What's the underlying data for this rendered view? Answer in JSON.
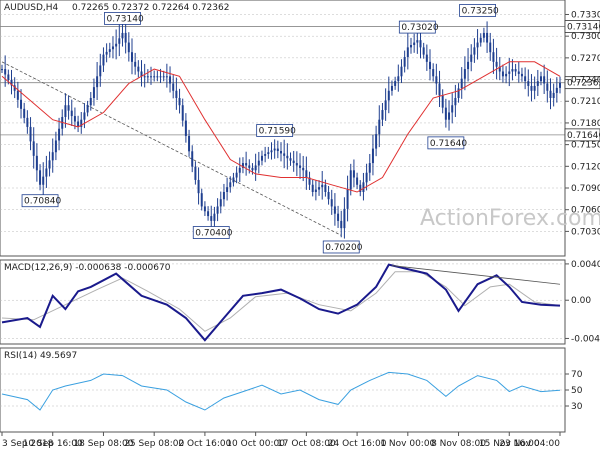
{
  "window": {
    "symbol_header": "AUDUSD,H4",
    "ohlc_header": "0.72265 0.72372 0.72264 0.72362",
    "watermark": "ActionForex.com"
  },
  "colors": {
    "candle": "#1f3f8f",
    "ma": "#e03030",
    "macd": "#1a1a8c",
    "signal": "#b0b0b0",
    "rsi": "#3aa0e0",
    "trendline": "#555555",
    "grid": "#bbbbbb"
  },
  "chart_data": [
    {
      "type": "line",
      "name": "price",
      "ylim": [
        0.7002,
        0.7345
      ],
      "yticks": [
        "0.73305",
        "0.73005",
        "0.72705",
        "0.72405",
        "0.72105",
        "0.71805",
        "0.71505",
        "0.71205",
        "0.70905",
        "0.70605",
        "0.70305"
      ],
      "ytick_values": [
        0.73305,
        0.73005,
        0.72705,
        0.72405,
        0.72105,
        0.71805,
        0.71505,
        0.71205,
        0.70905,
        0.70605,
        0.70305
      ],
      "levels": [
        {
          "label": "0.73140",
          "value": 0.7314
        },
        {
          "label": "0.72362",
          "value": 0.72362
        },
        {
          "label": "0.71640",
          "value": 0.7164
        }
      ],
      "annotations": [
        {
          "label": "0.73140",
          "x": 38,
          "value": 0.7314,
          "anchor": "low"
        },
        {
          "label": "0.70840",
          "x": 12,
          "value": 0.7084,
          "anchor": "high"
        },
        {
          "label": "0.70400",
          "x": 66,
          "value": 0.704,
          "anchor": "high"
        },
        {
          "label": "0.71590",
          "x": 86,
          "value": 0.7159,
          "anchor": "low"
        },
        {
          "label": "0.70200",
          "x": 107,
          "value": 0.702,
          "anchor": "high"
        },
        {
          "label": "0.73020",
          "x": 131,
          "value": 0.7302,
          "anchor": "low"
        },
        {
          "label": "0.71640",
          "x": 140,
          "value": 0.7164,
          "anchor": "high"
        },
        {
          "label": "0.73250",
          "x": 150,
          "value": 0.7325,
          "anchor": "low"
        }
      ],
      "price_path": [
        [
          0,
          0.7255
        ],
        [
          4,
          0.7225
        ],
        [
          8,
          0.7175
        ],
        [
          12,
          0.7095
        ],
        [
          16,
          0.714
        ],
        [
          20,
          0.7205
        ],
        [
          24,
          0.7175
        ],
        [
          28,
          0.7215
        ],
        [
          32,
          0.7275
        ],
        [
          36,
          0.729
        ],
        [
          38,
          0.7305
        ],
        [
          41,
          0.7265
        ],
        [
          44,
          0.7245
        ],
        [
          48,
          0.7245
        ],
        [
          52,
          0.7245
        ],
        [
          56,
          0.7205
        ],
        [
          60,
          0.712
        ],
        [
          63,
          0.7065
        ],
        [
          66,
          0.7045
        ],
        [
          70,
          0.7085
        ],
        [
          73,
          0.7105
        ],
        [
          76,
          0.7125
        ],
        [
          79,
          0.7115
        ],
        [
          82,
          0.7135
        ],
        [
          86,
          0.7145
        ],
        [
          89,
          0.7135
        ],
        [
          92,
          0.7125
        ],
        [
          95,
          0.7115
        ],
        [
          98,
          0.7085
        ],
        [
          101,
          0.7095
        ],
        [
          104,
          0.7065
        ],
        [
          107,
          0.7035
        ],
        [
          110,
          0.7115
        ],
        [
          113,
          0.7085
        ],
        [
          116,
          0.7125
        ],
        [
          119,
          0.7185
        ],
        [
          122,
          0.7225
        ],
        [
          125,
          0.7245
        ],
        [
          128,
          0.7285
        ],
        [
          131,
          0.7295
        ],
        [
          134,
          0.7265
        ],
        [
          137,
          0.7235
        ],
        [
          140,
          0.7185
        ],
        [
          143,
          0.7215
        ],
        [
          146,
          0.7255
        ],
        [
          149,
          0.7285
        ],
        [
          152,
          0.7305
        ],
        [
          155,
          0.7265
        ],
        [
          158,
          0.7245
        ],
        [
          161,
          0.7255
        ],
        [
          164,
          0.7245
        ],
        [
          167,
          0.7225
        ],
        [
          170,
          0.7245
        ],
        [
          173,
          0.7215
        ],
        [
          176,
          0.7236
        ]
      ],
      "ma_path": [
        [
          0,
          0.7245
        ],
        [
          8,
          0.7215
        ],
        [
          16,
          0.7185
        ],
        [
          24,
          0.7175
        ],
        [
          32,
          0.7195
        ],
        [
          40,
          0.7235
        ],
        [
          48,
          0.7255
        ],
        [
          56,
          0.7245
        ],
        [
          64,
          0.7185
        ],
        [
          72,
          0.713
        ],
        [
          80,
          0.711
        ],
        [
          88,
          0.7105
        ],
        [
          96,
          0.7105
        ],
        [
          104,
          0.7095
        ],
        [
          112,
          0.7085
        ],
        [
          120,
          0.7105
        ],
        [
          128,
          0.7165
        ],
        [
          136,
          0.7215
        ],
        [
          144,
          0.7225
        ],
        [
          152,
          0.7245
        ],
        [
          160,
          0.7265
        ],
        [
          168,
          0.7265
        ],
        [
          176,
          0.7245
        ]
      ],
      "trendline": [
        [
          0,
          0.7265
        ],
        [
          107,
          0.7025
        ]
      ]
    },
    {
      "type": "line",
      "name": "MACD(12,26,9) -0.000638 -0.000670",
      "ylim": [
        -0.0047,
        0.0043
      ],
      "yticks": [
        "0.004085",
        "0.00",
        "-0.0043"
      ],
      "ytick_values": [
        0.004085,
        0.0,
        -0.0043
      ],
      "zero_line": 0.0,
      "macd_path": [
        [
          0,
          -0.0025
        ],
        [
          8,
          -0.002
        ],
        [
          12,
          -0.003
        ],
        [
          16,
          0.0005
        ],
        [
          20,
          -0.001
        ],
        [
          24,
          0.001
        ],
        [
          28,
          0.0015
        ],
        [
          36,
          0.003
        ],
        [
          44,
          0.0005
        ],
        [
          52,
          -0.0005
        ],
        [
          58,
          -0.002
        ],
        [
          64,
          -0.0045
        ],
        [
          70,
          -0.002
        ],
        [
          76,
          0.0005
        ],
        [
          82,
          0.0008
        ],
        [
          88,
          0.0012
        ],
        [
          94,
          0.0002
        ],
        [
          100,
          -0.001
        ],
        [
          106,
          -0.0015
        ],
        [
          112,
          -0.0005
        ],
        [
          118,
          0.0015
        ],
        [
          122,
          0.004
        ],
        [
          128,
          0.0035
        ],
        [
          134,
          0.003
        ],
        [
          140,
          0.0012
        ],
        [
          144,
          -0.0012
        ],
        [
          150,
          0.0018
        ],
        [
          156,
          0.0028
        ],
        [
          160,
          0.0015
        ],
        [
          164,
          -0.0002
        ],
        [
          170,
          -0.0005
        ],
        [
          176,
          -0.0006
        ]
      ],
      "signal_path": [
        [
          0,
          -0.002
        ],
        [
          10,
          -0.0022
        ],
        [
          20,
          -0.0005
        ],
        [
          30,
          0.0012
        ],
        [
          38,
          0.0025
        ],
        [
          46,
          0.001
        ],
        [
          56,
          -0.001
        ],
        [
          64,
          -0.0035
        ],
        [
          72,
          -0.002
        ],
        [
          80,
          0.0004
        ],
        [
          90,
          0.0008
        ],
        [
          100,
          -0.0005
        ],
        [
          110,
          -0.0012
        ],
        [
          118,
          0.0008
        ],
        [
          124,
          0.0032
        ],
        [
          132,
          0.0032
        ],
        [
          140,
          0.0015
        ],
        [
          146,
          -0.0006
        ],
        [
          154,
          0.0015
        ],
        [
          160,
          0.0018
        ],
        [
          168,
          -0.0002
        ],
        [
          176,
          -0.0006
        ]
      ],
      "trendline": [
        [
          123,
          0.0039
        ],
        [
          176,
          0.0018
        ]
      ]
    },
    {
      "type": "line",
      "name": "RSI(14) 49.5697",
      "ylim": [
        0,
        100
      ],
      "yticks": [
        "70",
        "50",
        "30"
      ],
      "ytick_values": [
        70,
        50,
        30
      ],
      "rsi_path": [
        [
          0,
          45
        ],
        [
          8,
          38
        ],
        [
          12,
          25
        ],
        [
          16,
          50
        ],
        [
          20,
          55
        ],
        [
          28,
          62
        ],
        [
          32,
          70
        ],
        [
          38,
          68
        ],
        [
          44,
          55
        ],
        [
          52,
          50
        ],
        [
          58,
          35
        ],
        [
          64,
          25
        ],
        [
          70,
          40
        ],
        [
          76,
          48
        ],
        [
          82,
          56
        ],
        [
          88,
          45
        ],
        [
          94,
          50
        ],
        [
          100,
          38
        ],
        [
          106,
          32
        ],
        [
          110,
          50
        ],
        [
          116,
          62
        ],
        [
          122,
          72
        ],
        [
          128,
          70
        ],
        [
          134,
          62
        ],
        [
          140,
          42
        ],
        [
          144,
          55
        ],
        [
          150,
          68
        ],
        [
          156,
          62
        ],
        [
          160,
          48
        ],
        [
          164,
          55
        ],
        [
          170,
          48
        ],
        [
          176,
          49.6
        ]
      ]
    }
  ],
  "x_axis": {
    "domain": [
      0,
      176
    ],
    "labels": [
      {
        "text": "3 Sep 2018",
        "x": 0
      },
      {
        "text": "10 Sep 16:00",
        "x": 16
      },
      {
        "text": "18 Sep 08:00",
        "x": 32
      },
      {
        "text": "25 Sep 08:00",
        "x": 48
      },
      {
        "text": "2 Oct 16:00",
        "x": 64
      },
      {
        "text": "10 Oct 00:00",
        "x": 80
      },
      {
        "text": "17 Oct 08:00",
        "x": 96
      },
      {
        "text": "24 Oct 16:00",
        "x": 112
      },
      {
        "text": "1 Nov 00:00",
        "x": 128
      },
      {
        "text": "8 Nov 08:00",
        "x": 144
      },
      {
        "text": "15 Nov 16:00",
        "x": 160
      },
      {
        "text": "23 Nov 04:00",
        "x": 176
      }
    ]
  }
}
